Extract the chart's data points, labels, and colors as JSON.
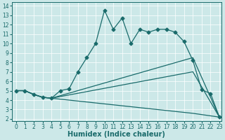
{
  "xlabel": "Humidex (Indice chaleur)",
  "bg_color": "#cce8e8",
  "line_color": "#1a6b6b",
  "grid_color": "#ffffff",
  "xlim_min": -0.5,
  "xlim_max": 23.2,
  "ylim_min": 1.8,
  "ylim_max": 14.4,
  "xticks": [
    0,
    1,
    2,
    3,
    4,
    5,
    6,
    7,
    8,
    9,
    10,
    11,
    12,
    13,
    14,
    15,
    16,
    17,
    18,
    19,
    20,
    21,
    22,
    23
  ],
  "yticks": [
    2,
    3,
    4,
    5,
    6,
    7,
    8,
    9,
    10,
    11,
    12,
    13,
    14
  ],
  "main_x": [
    0,
    1,
    2,
    3,
    4,
    5,
    6,
    7,
    8,
    9,
    10,
    11,
    12,
    13,
    14,
    15,
    16,
    17,
    18,
    19,
    20,
    21,
    22,
    23
  ],
  "main_y": [
    5.0,
    5.0,
    4.6,
    4.3,
    4.2,
    5.0,
    5.2,
    7.0,
    8.5,
    10.0,
    13.5,
    11.5,
    12.7,
    10.0,
    11.5,
    11.2,
    11.5,
    11.5,
    11.2,
    10.2,
    8.2,
    5.1,
    4.7,
    2.2
  ],
  "line2_x": [
    0,
    1,
    2,
    3,
    4,
    20,
    23
  ],
  "line2_y": [
    5.0,
    5.0,
    4.6,
    4.3,
    4.2,
    8.5,
    2.2
  ],
  "line3_x": [
    0,
    1,
    2,
    3,
    4,
    20,
    23
  ],
  "line3_y": [
    5.0,
    5.0,
    4.6,
    4.3,
    4.2,
    7.0,
    2.2
  ],
  "line4_x": [
    0,
    1,
    2,
    3,
    4,
    20,
    23
  ],
  "line4_y": [
    5.0,
    5.0,
    4.6,
    4.3,
    4.2,
    2.6,
    2.2
  ],
  "marker": "D",
  "marker_size": 2.5,
  "linewidth": 0.9,
  "tick_fontsize": 5.5,
  "label_fontsize": 7.0
}
